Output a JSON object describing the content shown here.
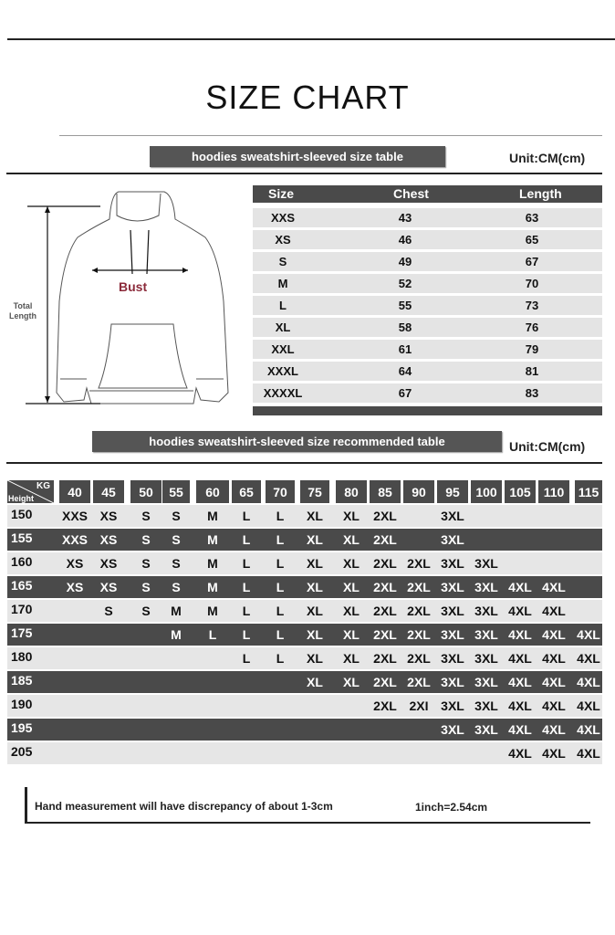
{
  "title": "SIZE CHART",
  "size_table": {
    "banner": "hoodies sweatshirt-sleeved size  table",
    "unit": "Unit:CM(cm)",
    "headers": [
      "Size",
      "Chest",
      "Length"
    ],
    "rows": [
      [
        "XXS",
        "43",
        "63"
      ],
      [
        "XS",
        "46",
        "65"
      ],
      [
        "S",
        "49",
        "67"
      ],
      [
        "M",
        "52",
        "70"
      ],
      [
        "L",
        "55",
        "73"
      ],
      [
        "XL",
        "58",
        "76"
      ],
      [
        "XXL",
        "61",
        "79"
      ],
      [
        "XXXL",
        "64",
        "81"
      ],
      [
        "XXXXL",
        "67",
        "83"
      ]
    ]
  },
  "diagram": {
    "bust_label": "Bust",
    "length_label_1": "Total",
    "length_label_2": "Length",
    "bust_color": "#8b2a3a"
  },
  "recommended_table": {
    "banner": "hoodies sweatshirt-sleeved size recommended table",
    "unit": "Unit:CM(cm)",
    "corner_top": "KG",
    "corner_bottom": "Height",
    "weights": [
      "40",
      "45",
      "50",
      "55",
      "60",
      "65",
      "70",
      "75",
      "80",
      "85",
      "90",
      "95",
      "100",
      "105",
      "110",
      "115"
    ],
    "rows": [
      {
        "height": "150",
        "sizes": [
          "XXS",
          "XS",
          "S",
          "S",
          "M",
          "L",
          "L",
          "XL",
          "XL",
          "2XL",
          "",
          "3XL",
          "",
          "",
          "",
          ""
        ]
      },
      {
        "height": "155",
        "sizes": [
          "XXS",
          "XS",
          "S",
          "S",
          "M",
          "L",
          "L",
          "XL",
          "XL",
          "2XL",
          "",
          "3XL",
          "",
          "",
          "",
          ""
        ]
      },
      {
        "height": "160",
        "sizes": [
          "XS",
          "XS",
          "S",
          "S",
          "M",
          "L",
          "L",
          "XL",
          "XL",
          "2XL",
          "2XL",
          "3XL",
          "3XL",
          "",
          "",
          ""
        ]
      },
      {
        "height": "165",
        "sizes": [
          "XS",
          "XS",
          "S",
          "S",
          "M",
          "L",
          "L",
          "XL",
          "XL",
          "2XL",
          "2XL",
          "3XL",
          "3XL",
          "4XL",
          "4XL",
          ""
        ]
      },
      {
        "height": "170",
        "sizes": [
          "",
          "S",
          "S",
          "M",
          "M",
          "L",
          "L",
          "XL",
          "XL",
          "2XL",
          "2XL",
          "3XL",
          "3XL",
          "4XL",
          "4XL",
          ""
        ]
      },
      {
        "height": "175",
        "sizes": [
          "",
          "",
          "",
          "M",
          "L",
          "L",
          "L",
          "XL",
          "XL",
          "2XL",
          "2XL",
          "3XL",
          "3XL",
          "4XL",
          "4XL",
          "4XL"
        ]
      },
      {
        "height": "180",
        "sizes": [
          "",
          "",
          "",
          "",
          "",
          "L",
          "L",
          "XL",
          "XL",
          "2XL",
          "2XL",
          "3XL",
          "3XL",
          "4XL",
          "4XL",
          "4XL"
        ]
      },
      {
        "height": "185",
        "sizes": [
          "",
          "",
          "",
          "",
          "",
          "",
          "",
          "XL",
          "XL",
          "2XL",
          "2XL",
          "3XL",
          "3XL",
          "4XL",
          "4XL",
          "4XL"
        ]
      },
      {
        "height": "190",
        "sizes": [
          "",
          "",
          "",
          "",
          "",
          "",
          "",
          "",
          "",
          "2XL",
          "2XI",
          "3XL",
          "3XL",
          "4XL",
          "4XL",
          "4XL"
        ]
      },
      {
        "height": "195",
        "sizes": [
          "",
          "",
          "",
          "",
          "",
          "",
          "",
          "",
          "",
          "",
          "",
          "3XL",
          "3XL",
          "4XL",
          "4XL",
          "4XL"
        ]
      },
      {
        "height": "205",
        "sizes": [
          "",
          "",
          "",
          "",
          "",
          "",
          "",
          "",
          "",
          "",
          "",
          "",
          "",
          "4XL",
          "4XL",
          "4XL"
        ]
      }
    ]
  },
  "footer": {
    "note": "Hand measurement will have discrepancy of about  1-3cm",
    "conversion": "1inch=2.54cm"
  }
}
